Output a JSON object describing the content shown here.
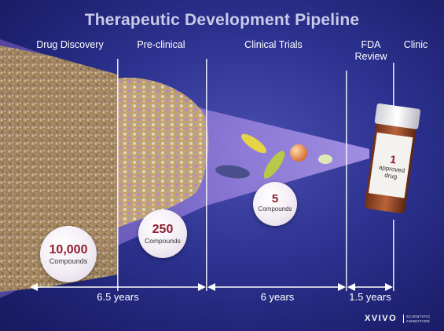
{
  "title": "Therapeutic Development Pipeline",
  "stages": [
    {
      "label": "Drug Discovery"
    },
    {
      "label": "Pre-clinical"
    },
    {
      "label": "Clinical Trials"
    },
    {
      "label": "FDA Review"
    },
    {
      "label": "Clinic"
    }
  ],
  "bubbles": [
    {
      "number": "10,000",
      "unit": "Compounds"
    },
    {
      "number": "250",
      "unit": "Compounds"
    },
    {
      "number": "5",
      "unit": "Compounds"
    }
  ],
  "bottle": {
    "number": "1",
    "line1": "approved",
    "line2": "drug"
  },
  "durations": [
    {
      "label": "6.5 years"
    },
    {
      "label": "6 years"
    },
    {
      "label": "1.5 years"
    }
  ],
  "logo": {
    "name": "XVIVO",
    "tagline": "SCIENTIFIC ANIMATION"
  },
  "colors": {
    "background": "#2d3290",
    "number_red": "#8f1c2c",
    "funnel": "#8e6fd6"
  }
}
